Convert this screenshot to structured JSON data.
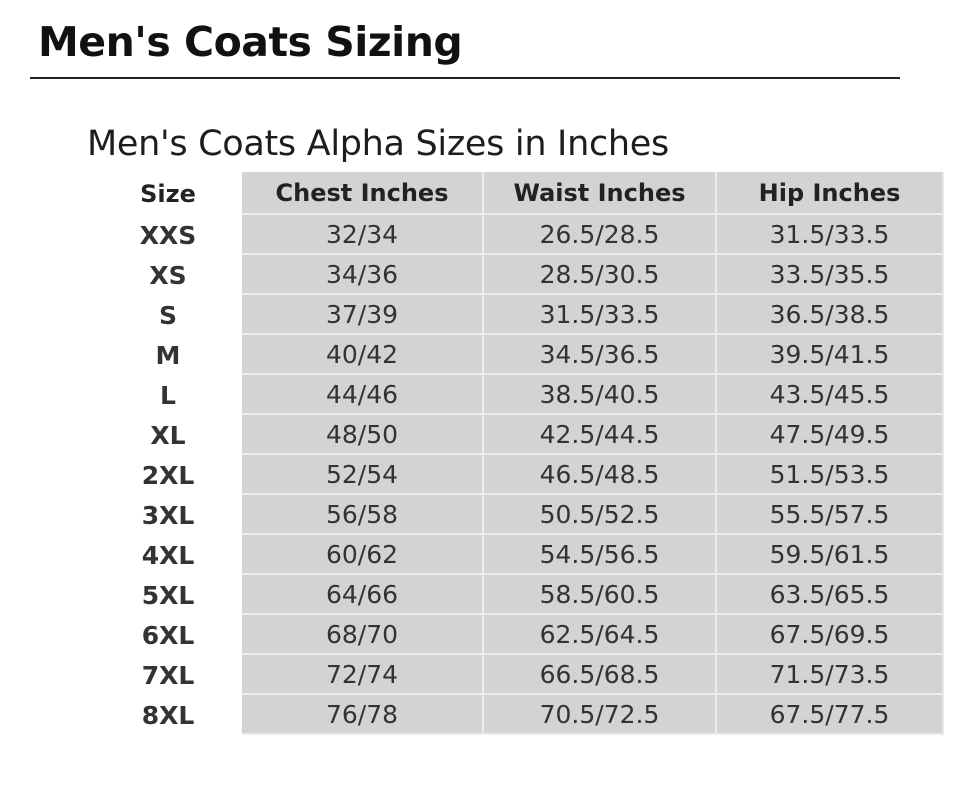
{
  "page": {
    "title": "Men's Coats Sizing",
    "subtitle": "Men's Coats Alpha Sizes in Inches"
  },
  "table": {
    "headers": [
      "Size",
      "Chest Inches",
      "Waist Inches",
      "Hip Inches"
    ],
    "rows": [
      {
        "size": "XXS",
        "chest": "32/34",
        "waist": "26.5/28.5",
        "hip": "31.5/33.5"
      },
      {
        "size": "XS",
        "chest": "34/36",
        "waist": "28.5/30.5",
        "hip": "33.5/35.5"
      },
      {
        "size": "S",
        "chest": "37/39",
        "waist": "31.5/33.5",
        "hip": "36.5/38.5"
      },
      {
        "size": "M",
        "chest": "40/42",
        "waist": "34.5/36.5",
        "hip": "39.5/41.5"
      },
      {
        "size": "L",
        "chest": "44/46",
        "waist": "38.5/40.5",
        "hip": "43.5/45.5"
      },
      {
        "size": "XL",
        "chest": "48/50",
        "waist": "42.5/44.5",
        "hip": "47.5/49.5"
      },
      {
        "size": "2XL",
        "chest": "52/54",
        "waist": "46.5/48.5",
        "hip": "51.5/53.5"
      },
      {
        "size": "3XL",
        "chest": "56/58",
        "waist": "50.5/52.5",
        "hip": "55.5/57.5"
      },
      {
        "size": "4XL",
        "chest": "60/62",
        "waist": "54.5/56.5",
        "hip": "59.5/61.5"
      },
      {
        "size": "5XL",
        "chest": "64/66",
        "waist": "58.5/60.5",
        "hip": "63.5/65.5"
      },
      {
        "size": "6XL",
        "chest": "68/70",
        "waist": "62.5/64.5",
        "hip": "67.5/69.5"
      },
      {
        "size": "7XL",
        "chest": "72/74",
        "waist": "66.5/68.5",
        "hip": "71.5/73.5"
      },
      {
        "size": "8XL",
        "chest": "76/78",
        "waist": "70.5/72.5",
        "hip": "67.5/77.5"
      }
    ]
  },
  "colors": {
    "cell_shade": "#d3d3d3",
    "grid_line": "#ececec",
    "text": "#333333"
  }
}
